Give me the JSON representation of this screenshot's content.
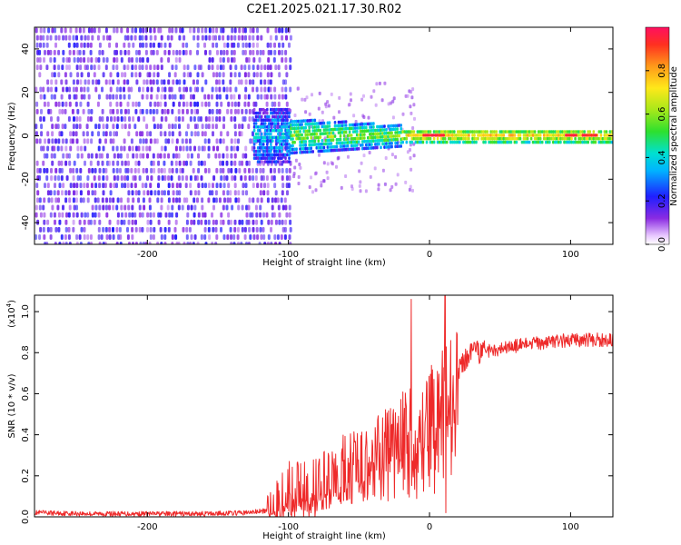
{
  "title": "C2E1.2025.021.17.30.R02",
  "colors": {
    "snr_line": "#ee2a2a",
    "heatmap_low": "#7b2cff",
    "heatmap_mid": "#1ed760",
    "heatmap_high": "#ff1030"
  },
  "chart_data": [
    {
      "type": "heatmap",
      "title": "",
      "xlabel": "Height of straight line (km)",
      "ylabel": "Frequency (Hz)",
      "xlim": [
        -280,
        130
      ],
      "ylim": [
        -50,
        50
      ],
      "xticks": [
        -200,
        -100,
        0,
        100
      ],
      "yticks": [
        -40,
        -20,
        0,
        20,
        40
      ],
      "grid": false,
      "colorbar": {
        "label": "Normalized spectral amplitude",
        "range": [
          0,
          1
        ],
        "ticks": [
          "0.0",
          "0.2",
          "0.4",
          "0.6",
          "0.8"
        ],
        "colormap": "rainbow (magenta-blue-cyan-green-yellow-red)"
      },
      "regions": [
        {
          "x_range": [
            -280,
            -100
          ],
          "description_value": 0.18,
          "frequency_span": [
            -50,
            50
          ]
        },
        {
          "x_range": [
            -125,
            -95
          ],
          "description_value": 0.3,
          "frequency_span": [
            -12,
            12
          ]
        },
        {
          "x_range": [
            -100,
            -20
          ],
          "description_value": 0.5,
          "frequency_span": [
            -8,
            8
          ]
        },
        {
          "x_range": [
            -20,
            130
          ],
          "description_value": 0.75,
          "frequency_span": [
            -3,
            3
          ]
        }
      ]
    },
    {
      "type": "line",
      "title": "",
      "xlabel": "Height of straight line (km)",
      "ylabel": "SNR (10 * v/v)",
      "y_multiplier": "(x10",
      "y_multiplier_exp": "4",
      "y_multiplier_close": ")",
      "xlim": [
        -280,
        130
      ],
      "ylim": [
        0,
        1.08
      ],
      "xticks": [
        -200,
        -100,
        0,
        100
      ],
      "yticks": [
        "0.0",
        "0.2",
        "0.4",
        "0.6",
        "0.8",
        "1.0"
      ],
      "grid": false,
      "series": [
        {
          "values_description": "noisy SNR curve",
          "x": [
            -280,
            -240,
            -200,
            -160,
            -130,
            -115,
            -105,
            -95,
            -85,
            -75,
            -65,
            -55,
            -45,
            -35,
            -25,
            -15,
            -10,
            -5,
            0,
            5,
            10,
            13,
            20,
            30,
            40,
            60,
            80,
            100,
            115,
            130
          ],
          "y": [
            0.02,
            0.015,
            0.015,
            0.015,
            0.02,
            0.03,
            0.08,
            0.14,
            0.13,
            0.18,
            0.22,
            0.28,
            0.26,
            0.35,
            0.4,
            0.45,
            0.3,
            0.5,
            0.52,
            0.55,
            0.6,
            0.65,
            0.72,
            0.79,
            0.81,
            0.83,
            0.85,
            0.86,
            0.86,
            0.865
          ]
        }
      ],
      "spikes": [
        {
          "x": -13,
          "y": 1.06
        },
        {
          "x": 11,
          "y": 1.08
        },
        {
          "x": 11.5,
          "y": 0.02
        }
      ]
    }
  ]
}
